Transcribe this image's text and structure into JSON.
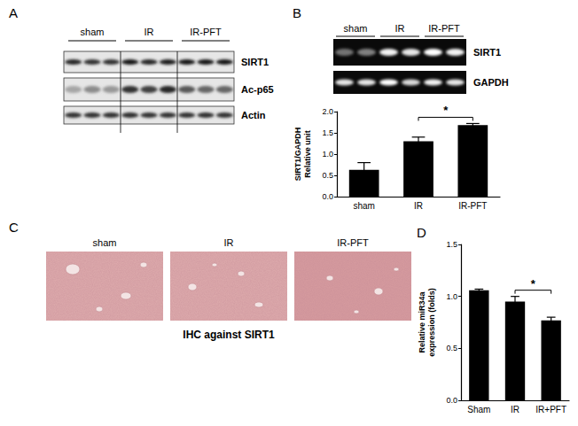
{
  "figure": {
    "panels": {
      "A": {
        "letter": "A",
        "groups": [
          "sham",
          "IR",
          "IR-PFT"
        ],
        "bands": [
          "SIRT1",
          "Ac-p65",
          "Actin"
        ]
      },
      "B": {
        "letter": "B",
        "groups": [
          "sham",
          "IR",
          "IR-PFT"
        ],
        "bands": [
          "SIRT1",
          "GAPDH"
        ]
      },
      "C": {
        "letter": "C",
        "groups": [
          "sham",
          "IR",
          "IR-PFT"
        ],
        "caption": "IHC against SIRT1"
      },
      "D": {
        "letter": "D"
      }
    }
  },
  "chart_data": [
    {
      "type": "bar",
      "panel": "B",
      "categories": [
        "sham",
        "IR",
        "IR-PFT"
      ],
      "values": [
        0.63,
        1.3,
        1.68
      ],
      "errors": [
        0.17,
        0.1,
        0.04
      ],
      "color": "#000000",
      "ylabel": "SIRT1/GAPDH\nRelative unit",
      "ylim": [
        0,
        2
      ],
      "yticks": [
        {
          "value": 0,
          "label": "0.0"
        },
        {
          "value": 0.5,
          "label": "0.5"
        },
        {
          "value": 1,
          "label": "1.0"
        },
        {
          "value": 1.5,
          "label": "1.5"
        },
        {
          "value": 2,
          "label": "2.0"
        }
      ],
      "grid": false,
      "annotations": [
        {
          "from": "IR",
          "to": "IR-PFT",
          "label": "*"
        }
      ]
    },
    {
      "type": "bar",
      "panel": "D",
      "categories": [
        "Sham",
        "IR",
        "IR+PFT"
      ],
      "values": [
        1.06,
        0.95,
        0.77
      ],
      "errors": [
        0.01,
        0.05,
        0.03
      ],
      "color": "#000000",
      "ylabel": "Relative miR34a\nexpression (folds)",
      "ylim": [
        0,
        1.5
      ],
      "yticks": [
        {
          "value": 0,
          "label": "0.0"
        },
        {
          "value": 0.5,
          "label": "0.5"
        },
        {
          "value": 1,
          "label": "1.0"
        },
        {
          "value": 1.5,
          "label": "1.5"
        }
      ],
      "grid": false,
      "annotations": [
        {
          "from": "IR",
          "to": "IR+PFT",
          "label": "*"
        }
      ]
    }
  ]
}
